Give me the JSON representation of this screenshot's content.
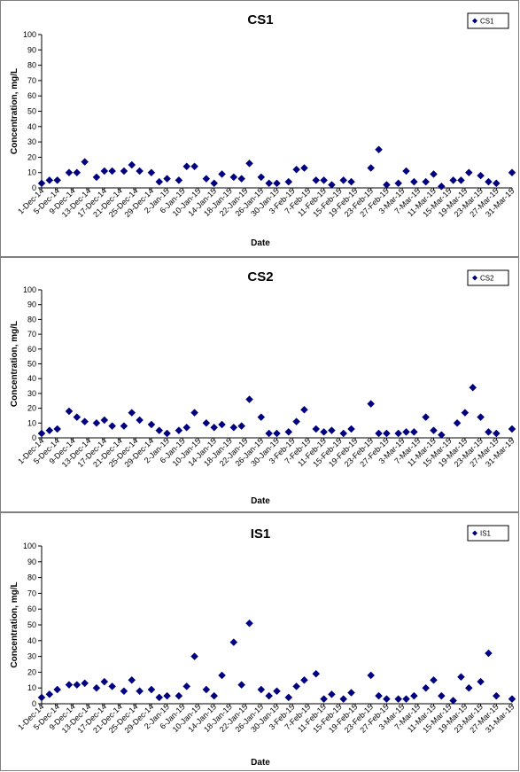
{
  "chart_data": [
    {
      "type": "scatter",
      "title": "CS1",
      "xlabel": "Date",
      "ylabel": "Concentration, mg/L",
      "ylim": [
        0,
        100
      ],
      "yticks": [
        0,
        10,
        20,
        30,
        40,
        50,
        60,
        70,
        80,
        90,
        100
      ],
      "x_tick_labels": [
        "1-Dec-14",
        "5-Dec-14",
        "9-Dec-14",
        "13-Dec-14",
        "17-Dec-14",
        "21-Dec-14",
        "25-Dec-14",
        "29-Dec-14",
        "2-Jan-15",
        "6-Jan-15",
        "10-Jan-15",
        "14-Jan-15",
        "18-Jan-15",
        "22-Jan-15",
        "26-Jan-15",
        "30-Jan-15",
        "3-Feb-15",
        "7-Feb-15",
        "11-Feb-15",
        "15-Feb-15",
        "19-Feb-15",
        "23-Feb-15",
        "27-Feb-15",
        "3-Mar-15",
        "7-Mar-15",
        "11-Mar-15",
        "15-Mar-15",
        "19-Mar-15",
        "23-Mar-15",
        "27-Mar-15",
        "31-Mar-15"
      ],
      "legend": "top-right",
      "grid": false,
      "marker_color": "#000080",
      "series": [
        {
          "name": "CS1",
          "x": [
            "1-Dec-14",
            "3-Dec-14",
            "5-Dec-14",
            "8-Dec-14",
            "10-Dec-14",
            "12-Dec-14",
            "15-Dec-14",
            "17-Dec-14",
            "19-Dec-14",
            "22-Dec-14",
            "24-Dec-14",
            "26-Dec-14",
            "29-Dec-14",
            "31-Dec-14",
            "2-Jan-15",
            "5-Jan-15",
            "7-Jan-15",
            "9-Jan-15",
            "12-Jan-15",
            "14-Jan-15",
            "16-Jan-15",
            "19-Jan-15",
            "21-Jan-15",
            "23-Jan-15",
            "26-Jan-15",
            "28-Jan-15",
            "30-Jan-15",
            "2-Feb-15",
            "4-Feb-15",
            "6-Feb-15",
            "9-Feb-15",
            "11-Feb-15",
            "13-Feb-15",
            "16-Feb-15",
            "18-Feb-15",
            "23-Feb-15",
            "25-Feb-15",
            "27-Feb-15",
            "2-Mar-15",
            "4-Mar-15",
            "6-Mar-15",
            "9-Mar-15",
            "11-Mar-15",
            "13-Mar-15",
            "16-Mar-15",
            "18-Mar-15",
            "20-Mar-15",
            "23-Mar-15",
            "25-Mar-15",
            "27-Mar-15",
            "31-Mar-15"
          ],
          "y": [
            3,
            5,
            5,
            10,
            10,
            17,
            7,
            11,
            11,
            11,
            15,
            11,
            10,
            4,
            6,
            5,
            14,
            14,
            6,
            3,
            9,
            7,
            6,
            16,
            7,
            3,
            3,
            4,
            12,
            13,
            5,
            5,
            2,
            5,
            4,
            13,
            25,
            2,
            3,
            11,
            4,
            4,
            9,
            1,
            5,
            5,
            10,
            8,
            4,
            3,
            10
          ]
        }
      ]
    },
    {
      "type": "scatter",
      "title": "CS2",
      "xlabel": "Date",
      "ylabel": "Concentration, mg/L",
      "ylim": [
        0,
        100
      ],
      "yticks": [
        0,
        10,
        20,
        30,
        40,
        50,
        60,
        70,
        80,
        90,
        100
      ],
      "x_tick_labels": [
        "1-Dec-14",
        "5-Dec-14",
        "9-Dec-14",
        "13-Dec-14",
        "17-Dec-14",
        "21-Dec-14",
        "25-Dec-14",
        "29-Dec-14",
        "2-Jan-15",
        "6-Jan-15",
        "10-Jan-15",
        "14-Jan-15",
        "18-Jan-15",
        "22-Jan-15",
        "26-Jan-15",
        "30-Jan-15",
        "3-Feb-15",
        "7-Feb-15",
        "11-Feb-15",
        "15-Feb-15",
        "19-Feb-15",
        "23-Feb-15",
        "27-Feb-15",
        "3-Mar-15",
        "7-Mar-15",
        "11-Mar-15",
        "15-Mar-15",
        "19-Mar-15",
        "23-Mar-15",
        "27-Mar-15",
        "31-Mar-15"
      ],
      "legend": "top-right",
      "grid": false,
      "marker_color": "#000080",
      "series": [
        {
          "name": "CS2",
          "x": [
            "1-Dec-14",
            "3-Dec-14",
            "5-Dec-14",
            "8-Dec-14",
            "10-Dec-14",
            "12-Dec-14",
            "15-Dec-14",
            "17-Dec-14",
            "19-Dec-14",
            "22-Dec-14",
            "24-Dec-14",
            "26-Dec-14",
            "29-Dec-14",
            "31-Dec-14",
            "2-Jan-15",
            "5-Jan-15",
            "7-Jan-15",
            "9-Jan-15",
            "12-Jan-15",
            "14-Jan-15",
            "16-Jan-15",
            "19-Jan-15",
            "21-Jan-15",
            "23-Jan-15",
            "26-Jan-15",
            "28-Jan-15",
            "30-Jan-15",
            "2-Feb-15",
            "4-Feb-15",
            "6-Feb-15",
            "9-Feb-15",
            "11-Feb-15",
            "13-Feb-15",
            "16-Feb-15",
            "18-Feb-15",
            "23-Feb-15",
            "25-Feb-15",
            "27-Feb-15",
            "2-Mar-15",
            "4-Mar-15",
            "6-Mar-15",
            "9-Mar-15",
            "11-Mar-15",
            "13-Mar-15",
            "17-Mar-15",
            "19-Mar-15",
            "21-Mar-15",
            "23-Mar-15",
            "25-Mar-15",
            "27-Mar-15",
            "31-Mar-15"
          ],
          "y": [
            3,
            5,
            6,
            18,
            14,
            11,
            10,
            12,
            8,
            8,
            17,
            12,
            9,
            5,
            3,
            5,
            7,
            17,
            10,
            7,
            9,
            7,
            8,
            26,
            14,
            3,
            3,
            4,
            11,
            19,
            6,
            4,
            5,
            3,
            6,
            23,
            3,
            3,
            3,
            4,
            4,
            14,
            5,
            2,
            10,
            17,
            34,
            14,
            4,
            3,
            6
          ]
        }
      ]
    },
    {
      "type": "scatter",
      "title": "IS1",
      "xlabel": "Date",
      "ylabel": "Concentration, mg/L",
      "ylim": [
        0,
        100
      ],
      "yticks": [
        0,
        10,
        20,
        30,
        40,
        50,
        60,
        70,
        80,
        90,
        100
      ],
      "x_tick_labels": [
        "1-Dec-14",
        "5-Dec-14",
        "9-Dec-14",
        "13-Dec-14",
        "17-Dec-14",
        "21-Dec-14",
        "25-Dec-14",
        "29-Dec-14",
        "2-Jan-15",
        "6-Jan-15",
        "10-Jan-15",
        "14-Jan-15",
        "18-Jan-15",
        "22-Jan-15",
        "26-Jan-15",
        "30-Jan-15",
        "3-Feb-15",
        "7-Feb-15",
        "11-Feb-15",
        "15-Feb-15",
        "19-Feb-15",
        "23-Feb-15",
        "27-Feb-15",
        "3-Mar-15",
        "7-Mar-15",
        "11-Mar-15",
        "15-Mar-15",
        "19-Mar-15",
        "23-Mar-15",
        "27-Mar-15",
        "31-Mar-15"
      ],
      "legend": "top-right",
      "grid": false,
      "marker_color": "#000080",
      "series": [
        {
          "name": "IS1",
          "x": [
            "1-Dec-14",
            "3-Dec-14",
            "5-Dec-14",
            "8-Dec-14",
            "10-Dec-14",
            "12-Dec-14",
            "15-Dec-14",
            "17-Dec-14",
            "19-Dec-14",
            "22-Dec-14",
            "24-Dec-14",
            "26-Dec-14",
            "29-Dec-14",
            "31-Dec-14",
            "2-Jan-15",
            "5-Jan-15",
            "7-Jan-15",
            "9-Jan-15",
            "12-Jan-15",
            "14-Jan-15",
            "16-Jan-15",
            "19-Jan-15",
            "21-Jan-15",
            "23-Jan-15",
            "26-Jan-15",
            "28-Jan-15",
            "30-Jan-15",
            "2-Feb-15",
            "4-Feb-15",
            "6-Feb-15",
            "9-Feb-15",
            "11-Feb-15",
            "13-Feb-15",
            "16-Feb-15",
            "18-Feb-15",
            "23-Feb-15",
            "25-Feb-15",
            "27-Feb-15",
            "2-Mar-15",
            "4-Mar-15",
            "6-Mar-15",
            "9-Mar-15",
            "11-Mar-15",
            "13-Mar-15",
            "16-Mar-15",
            "18-Mar-15",
            "20-Mar-15",
            "23-Mar-15",
            "25-Mar-15",
            "27-Mar-15",
            "31-Mar-15"
          ],
          "y": [
            4,
            6,
            9,
            12,
            12,
            13,
            10,
            14,
            11,
            8,
            15,
            8,
            9,
            4,
            5,
            5,
            11,
            30,
            9,
            5,
            18,
            39,
            12,
            51,
            9,
            5,
            8,
            4,
            11,
            15,
            19,
            3,
            6,
            3,
            7,
            18,
            5,
            3,
            3,
            3,
            5,
            10,
            15,
            5,
            2,
            17,
            10,
            14,
            32,
            5,
            3
          ]
        }
      ]
    }
  ]
}
